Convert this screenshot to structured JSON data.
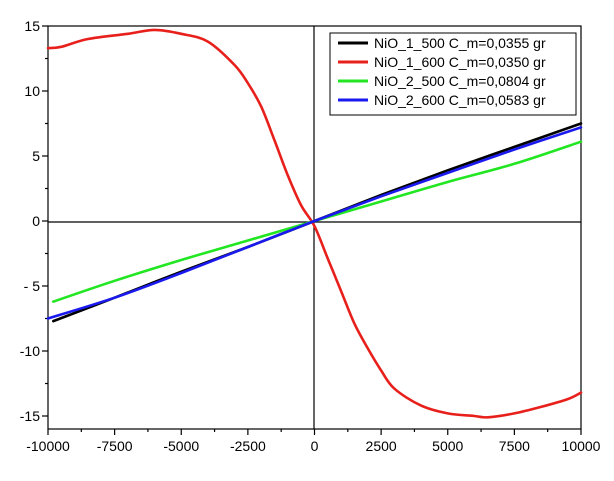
{
  "chart_data": {
    "type": "line",
    "title": "",
    "xlabel": "",
    "ylabel": "",
    "xlim": [
      -10000,
      10000
    ],
    "ylim": [
      -15.5,
      15
    ],
    "x_ticks": [
      -10000,
      -7500,
      -5000,
      -2500,
      0,
      2500,
      5000,
      7500,
      10000
    ],
    "x_tick_labels": [
      "-10000",
      "-7500",
      "-5000",
      "-2500",
      "0",
      "2500",
      "5000",
      "7500",
      "10000"
    ],
    "y_ticks": [
      15,
      10,
      5,
      0,
      -5,
      -10,
      -15
    ],
    "y_tick_labels": [
      "15",
      "10",
      "5",
      "0",
      "- 5",
      "-10",
      "-15"
    ],
    "grid": false,
    "legend_position": "top-right",
    "series": [
      {
        "name": "NiO_1_500 C_m=0,0355 gr",
        "color": "#000000",
        "x": [
          -9800,
          -7500,
          -5000,
          -2500,
          0,
          2500,
          5000,
          7500,
          10000
        ],
        "y": [
          -7.7,
          -5.9,
          -3.9,
          -2.0,
          0,
          2.0,
          3.9,
          5.7,
          7.5
        ]
      },
      {
        "name": "NiO_1_600 C_m=0,0350 gr",
        "color": "#e8201c",
        "x": [
          -10000,
          -9500,
          -8500,
          -7000,
          -6000,
          -5000,
          -4000,
          -3000,
          -2500,
          -2000,
          -1500,
          -1000,
          -500,
          0,
          500,
          1000,
          1500,
          2000,
          2500,
          3000,
          4000,
          5000,
          6000,
          6500,
          7500,
          8500,
          9500,
          10000
        ],
        "y": [
          13.3,
          13.4,
          14.0,
          14.4,
          14.7,
          14.4,
          13.8,
          12.0,
          10.6,
          8.8,
          6.2,
          3.5,
          1.2,
          -0.4,
          -2.9,
          -5.4,
          -7.9,
          -9.8,
          -11.5,
          -12.9,
          -14.2,
          -14.8,
          -15.0,
          -15.1,
          -14.8,
          -14.3,
          -13.7,
          -13.2
        ]
      },
      {
        "name": "NiO_2_500 C_m=0,0804 gr",
        "color": "#22e622",
        "x": [
          -9800,
          -7500,
          -5000,
          -2500,
          0,
          2500,
          5000,
          7500,
          10000
        ],
        "y": [
          -6.2,
          -4.6,
          -3.0,
          -1.5,
          0,
          1.5,
          3.0,
          4.4,
          6.1
        ]
      },
      {
        "name": "NiO_2_600 C_m=0,0583 gr",
        "color": "#1a1aee",
        "x": [
          -10000,
          -7500,
          -5000,
          -2500,
          0,
          2500,
          5000,
          7500,
          10000
        ],
        "y": [
          -7.5,
          -5.9,
          -4.0,
          -2.0,
          0,
          1.9,
          3.7,
          5.5,
          7.2
        ]
      }
    ]
  }
}
